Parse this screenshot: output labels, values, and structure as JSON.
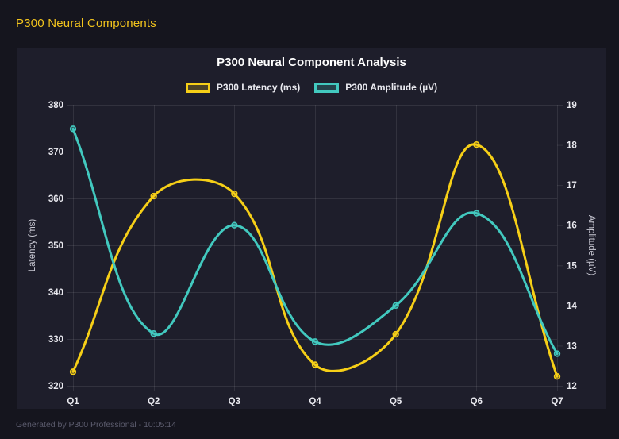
{
  "header": {
    "title": "P300 Neural Components"
  },
  "footer": {
    "text": "Generated by P300 Professional - 10:05:14"
  },
  "chart_data": {
    "type": "line",
    "title": "P300 Neural Component Analysis",
    "categories": [
      "Q1",
      "Q2",
      "Q3",
      "Q4",
      "Q5",
      "Q6",
      "Q7"
    ],
    "series": [
      {
        "name": "P300 Latency (ms)",
        "axis": "left",
        "color": "#f6cf17",
        "values": [
          323,
          360.5,
          361,
          324.5,
          331,
          371.5,
          322
        ]
      },
      {
        "name": "P300 Amplitude (µV)",
        "axis": "right",
        "color": "#42c9bf",
        "values": [
          18.4,
          13.3,
          16.0,
          13.1,
          14.0,
          16.3,
          12.8
        ]
      }
    ],
    "left_axis": {
      "label": "Latency (ms)",
      "min": 320,
      "max": 380,
      "step": 10
    },
    "right_axis": {
      "label": "Amplitude (µV)",
      "min": 12,
      "max": 19,
      "step": 1
    },
    "grid": true,
    "legend_position": "top",
    "line_tension": 0.4,
    "colors": {
      "page_background": "#15151e",
      "card_background": "#1e1e2b",
      "grid": "rgba(255,255,255,0.09)",
      "tick_text": "#e9e9ef",
      "axis_title_text": "#c9c9d4",
      "title_text": "#ffffff",
      "header_text": "#f2c41d",
      "footer_text": "#5c5c6e"
    }
  }
}
